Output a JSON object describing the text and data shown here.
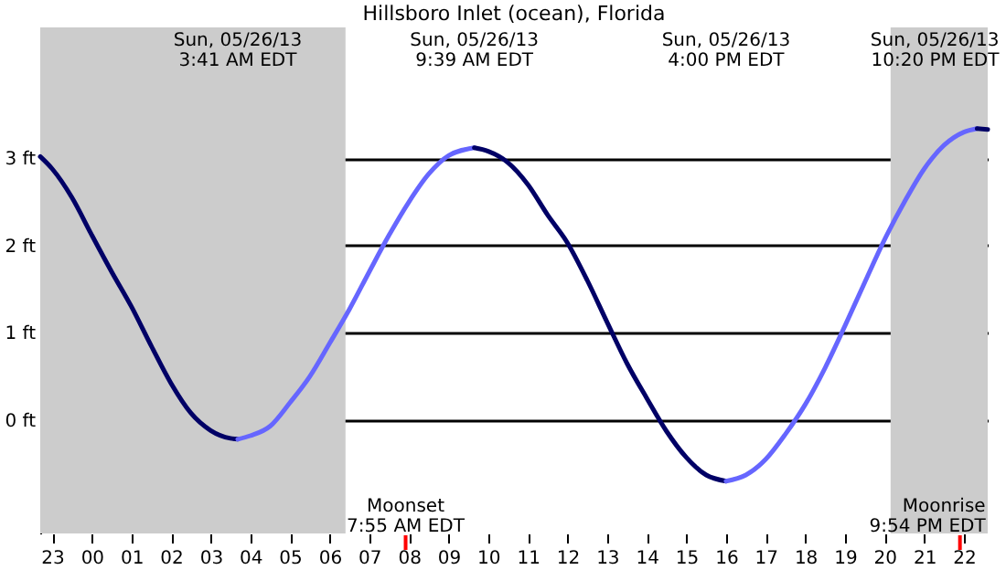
{
  "chart_data": {
    "type": "line",
    "title": "Hillsboro Inlet (ocean), Florida",
    "xlim": [
      "--05-25T22:42",
      "--05-26T22:36"
    ],
    "ylim": [
      -1.3,
      4.5
    ],
    "xticks": [
      {
        "value": "--05-25T23:00",
        "label": "23"
      },
      {
        "value": "--05-26T00:00",
        "label": "00"
      },
      {
        "value": "--05-26T01:00",
        "label": "01"
      },
      {
        "value": "--05-26T02:00",
        "label": "02"
      },
      {
        "value": "--05-26T03:00",
        "label": "03"
      },
      {
        "value": "--05-26T04:00",
        "label": "04"
      },
      {
        "value": "--05-26T05:00",
        "label": "05"
      },
      {
        "value": "--05-26T06:00",
        "label": "06"
      },
      {
        "value": "--05-26T07:00",
        "label": "07"
      },
      {
        "value": "--05-26T08:00",
        "label": "08"
      },
      {
        "value": "--05-26T09:00",
        "label": "09"
      },
      {
        "value": "--05-26T10:00",
        "label": "10"
      },
      {
        "value": "--05-26T11:00",
        "label": "11"
      },
      {
        "value": "--05-26T12:00",
        "label": "12"
      },
      {
        "value": "--05-26T13:00",
        "label": "13"
      },
      {
        "value": "--05-26T14:00",
        "label": "14"
      },
      {
        "value": "--05-26T15:00",
        "label": "15"
      },
      {
        "value": "--05-26T16:00",
        "label": "16"
      },
      {
        "value": "--05-26T17:00",
        "label": "17"
      },
      {
        "value": "--05-26T18:00",
        "label": "18"
      },
      {
        "value": "--05-26T19:00",
        "label": "19"
      },
      {
        "value": "--05-26T20:00",
        "label": "20"
      },
      {
        "value": "--05-26T21:00",
        "label": "21"
      },
      {
        "value": "--05-26T22:00",
        "label": "22"
      }
    ],
    "yticks": [
      {
        "value": 0,
        "label": "0 ft"
      },
      {
        "value": 1,
        "label": "1 ft"
      },
      {
        "value": 2,
        "label": "2 ft"
      },
      {
        "value": 3,
        "label": "3 ft"
      }
    ],
    "grid": "y",
    "series": [
      {
        "color": "#000066",
        "x": [
          "--05-25T22:42",
          "--05-25T23:00",
          "--05-25T23:30",
          "--05-26T00:00",
          "--05-26T00:30",
          "--05-26T01:00",
          "--05-26T01:30",
          "--05-26T02:00",
          "--05-26T02:30",
          "--05-26T03:00",
          "--05-26T03:30",
          "--05-26T03:41"
        ],
        "values": [
          3.02,
          2.88,
          2.55,
          2.12,
          1.7,
          1.3,
          0.85,
          0.42,
          0.08,
          -0.12,
          -0.21,
          -0.22
        ]
      },
      {
        "color": "#6666ff",
        "x": [
          "--05-26T03:41",
          "--05-26T04:00",
          "--05-26T04:30",
          "--05-26T05:00",
          "--05-26T05:30",
          "--05-26T06:00",
          "--05-26T06:30",
          "--05-26T07:00",
          "--05-26T07:30",
          "--05-26T08:00",
          "--05-26T08:30",
          "--05-26T09:00",
          "--05-26T09:39"
        ],
        "values": [
          -0.22,
          -0.18,
          -0.07,
          0.2,
          0.5,
          0.88,
          1.27,
          1.7,
          2.12,
          2.5,
          2.82,
          3.03,
          3.12
        ]
      },
      {
        "color": "#000066",
        "x": [
          "--05-26T09:39",
          "--05-26T10:00",
          "--05-26T10:30",
          "--05-26T11:00",
          "--05-26T11:30",
          "--05-26T12:00",
          "--05-26T12:30",
          "--05-26T13:00",
          "--05-26T13:30",
          "--05-26T14:00",
          "--05-26T14:30",
          "--05-26T15:00",
          "--05-26T15:30",
          "--05-26T16:00"
        ],
        "values": [
          3.12,
          3.08,
          2.95,
          2.7,
          2.35,
          2.03,
          1.6,
          1.12,
          0.65,
          0.25,
          -0.13,
          -0.43,
          -0.63,
          -0.7
        ]
      },
      {
        "color": "#6666ff",
        "x": [
          "--05-26T16:00",
          "--05-26T16:30",
          "--05-26T17:00",
          "--05-26T17:30",
          "--05-26T18:00",
          "--05-26T18:30",
          "--05-26T19:00",
          "--05-26T19:30",
          "--05-26T20:00",
          "--05-26T20:30",
          "--05-26T21:00",
          "--05-26T21:30",
          "--05-26T22:00",
          "--05-26T22:20"
        ],
        "values": [
          -0.7,
          -0.63,
          -0.45,
          -0.16,
          0.18,
          0.6,
          1.08,
          1.58,
          2.07,
          2.5,
          2.88,
          3.15,
          3.3,
          3.34
        ]
      },
      {
        "color": "#000066",
        "x": [
          "--05-26T22:20",
          "--05-26T22:36"
        ],
        "values": [
          3.34,
          3.33
        ]
      }
    ],
    "bands": [
      {
        "axis": "x",
        "from": "--05-25T22:42",
        "to": "--05-26T06:24",
        "color": "#cccccc"
      },
      {
        "axis": "x",
        "from": "--05-26T20:09",
        "to": "--05-26T22:36",
        "color": "#cccccc"
      }
    ],
    "ref_lines": [
      {
        "axis": "x",
        "value": "--05-26T07:55",
        "label": "Moonset\n7:55 AM EDT",
        "color": "#ff0000"
      },
      {
        "axis": "x",
        "value": "--05-26T21:54",
        "label": "Moonrise\n9:54 PM EDT",
        "color": "#ff0000"
      }
    ],
    "annotations": [
      "Sun, 05/26/13\n3:41 AM EDT",
      "Sun, 05/26/13\n9:39 AM EDT",
      "Sun, 05/26/13\n4:00 PM EDT",
      "Sun, 05/26/13\n10:20 PM EDT"
    ]
  }
}
